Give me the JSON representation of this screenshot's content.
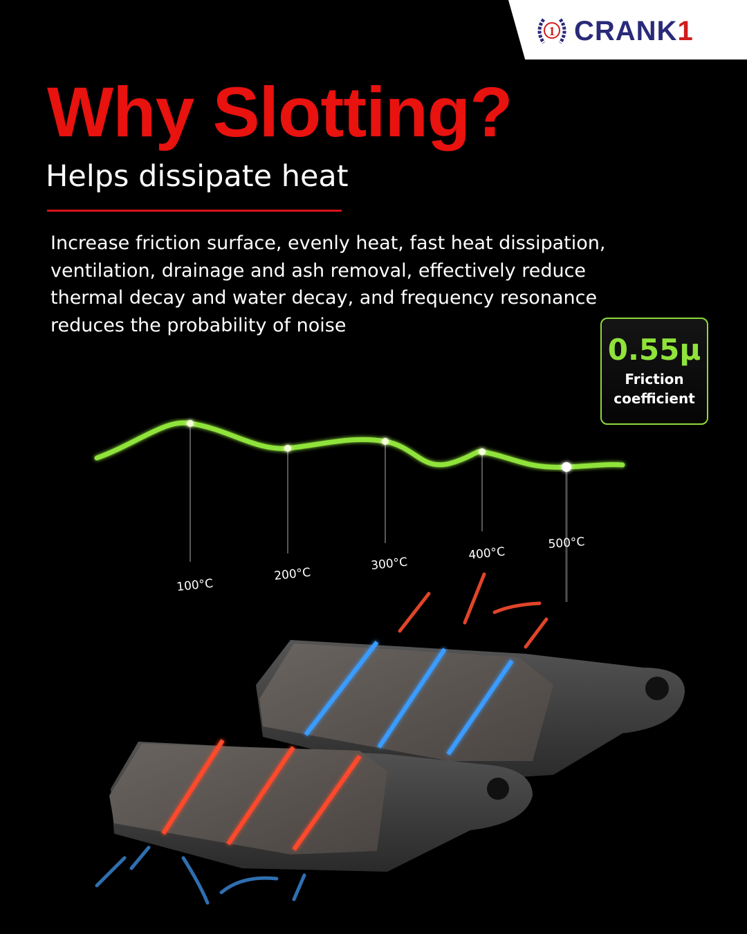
{
  "brand": {
    "name": "CRANK",
    "name_suffix": "1",
    "emblem_number": "1"
  },
  "header": {
    "title": "Why Slotting?",
    "subtitle": "Helps dissipate heat"
  },
  "description": "Increase friction surface, evenly heat, fast heat dissipation, ventilation, drainage and ash removal, effectively reduce thermal decay and water decay, and frequency resonance reduces the probability of noise",
  "badge": {
    "value": "0.55μ",
    "label_line1": "Friction",
    "label_line2": "coefficient",
    "accent_color": "#8fd93a"
  },
  "temperature_labels": [
    "100°C",
    "200°C",
    "300°C",
    "400°C",
    "500°C"
  ],
  "colors": {
    "title": "#e8120f",
    "curve": "#8fe33a",
    "hot_slot": "#ff4a2a",
    "cool_slot": "#3a9cff"
  }
}
